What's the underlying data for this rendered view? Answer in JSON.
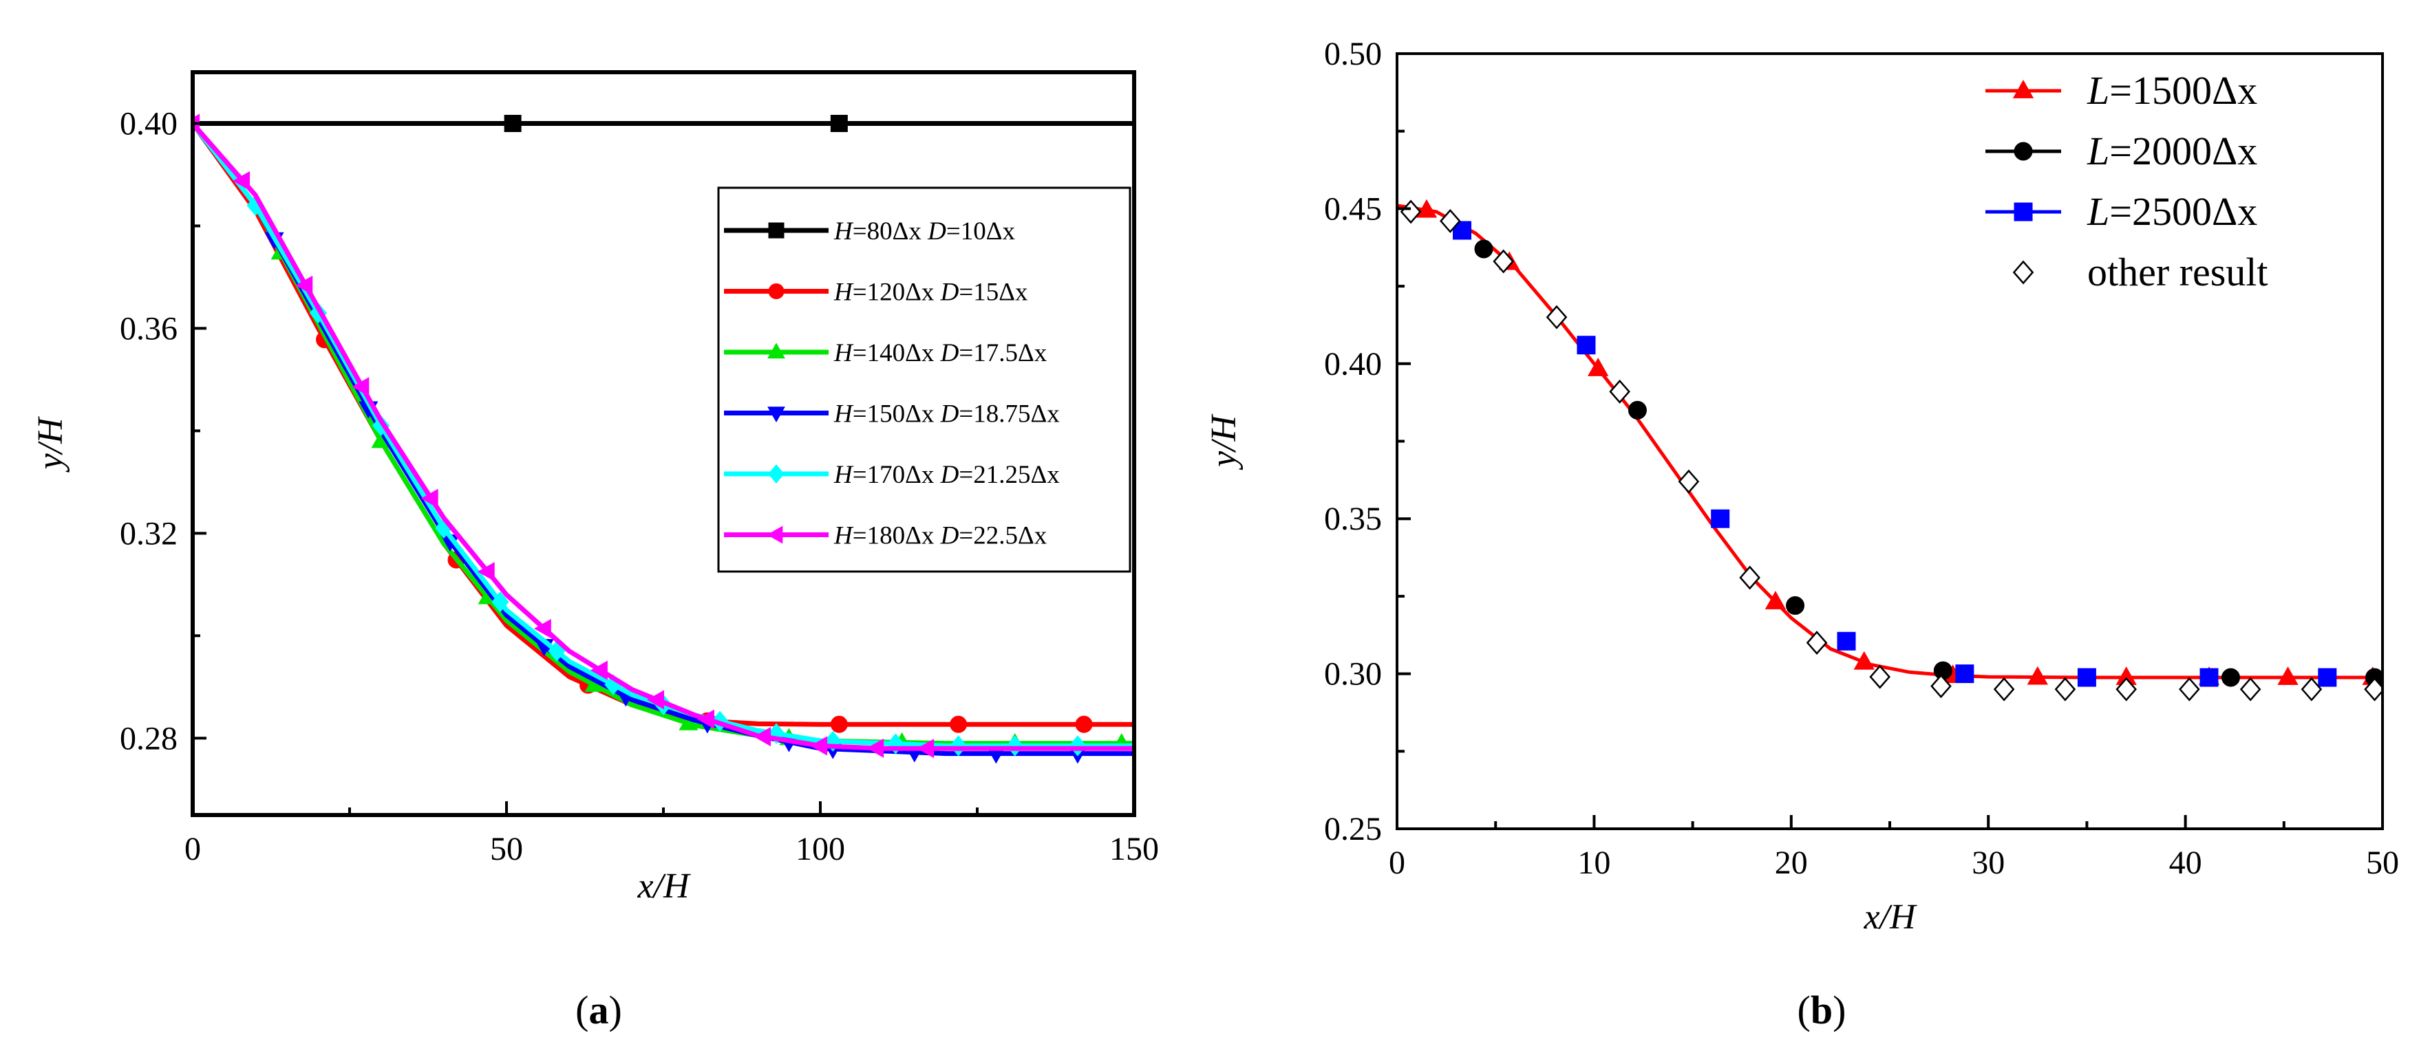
{
  "caption_a": {
    "open": "(",
    "letter": "a",
    "close": ")"
  },
  "caption_b": {
    "open": "(",
    "letter": "b",
    "close": ")"
  },
  "chart_data": [
    {
      "type": "line",
      "panel": "a",
      "xlabel": "x/H",
      "ylabel": "y/H",
      "xlim": [
        0,
        150
      ],
      "ylim": [
        0.265,
        0.41
      ],
      "xticks": [
        "0",
        "50",
        "100",
        "150"
      ],
      "yticks": [
        "0.28",
        "0.32",
        "0.36",
        "0.40"
      ],
      "ytick_values": [
        0.28,
        0.32,
        0.36,
        0.4
      ],
      "xtick_values": [
        0,
        50,
        100,
        150
      ],
      "legend_position": "right",
      "series": [
        {
          "name": "H=80Δx D=10Δx",
          "label_parts": [
            [
              "H",
              "i"
            ],
            [
              "=80Δx ",
              ""
            ],
            [
              "D",
              "i"
            ],
            [
              "=10Δx",
              ""
            ]
          ],
          "color": "#000000",
          "marker": "square",
          "x": [
            0,
            25,
            50,
            75,
            100,
            125,
            150
          ],
          "y": [
            0.4,
            0.4,
            0.4,
            0.4,
            0.4,
            0.4,
            0.4
          ],
          "markers_x": [
            51,
            103
          ]
        },
        {
          "name": "H=120Δx D=15Δx",
          "label_parts": [
            [
              "H",
              "i"
            ],
            [
              "=120Δx ",
              ""
            ],
            [
              "D",
              "i"
            ],
            [
              "=15Δx",
              ""
            ]
          ],
          "color": "#ff0000",
          "marker": "circle",
          "x": [
            0,
            10,
            20,
            30,
            40,
            50,
            60,
            70,
            80,
            90,
            100,
            120,
            150
          ],
          "y": [
            0.4,
            0.383,
            0.36,
            0.338,
            0.318,
            0.302,
            0.292,
            0.2865,
            0.2835,
            0.2828,
            0.2827,
            0.2827,
            0.2827
          ],
          "markers_x": [
            21,
            42,
            63,
            82,
            103,
            122,
            142
          ]
        },
        {
          "name": "H=140Δx D=17.5Δx",
          "label_parts": [
            [
              "H",
              "i"
            ],
            [
              "=140Δx ",
              ""
            ],
            [
              "D",
              "i"
            ],
            [
              "=17.5Δx",
              ""
            ]
          ],
          "color": "#00e600",
          "marker": "triangle-up",
          "x": [
            0,
            10,
            20,
            30,
            40,
            50,
            60,
            70,
            80,
            90,
            100,
            120,
            150
          ],
          "y": [
            0.4,
            0.384,
            0.361,
            0.338,
            0.318,
            0.303,
            0.293,
            0.2865,
            0.2825,
            0.2805,
            0.2795,
            0.279,
            0.279
          ],
          "markers_x": [
            14,
            30,
            47,
            64,
            79,
            95,
            113,
            131,
            148
          ]
        },
        {
          "name": "H=150Δx D=18.75Δx",
          "label_parts": [
            [
              "H",
              "i"
            ],
            [
              "=150Δx ",
              ""
            ],
            [
              "D",
              "i"
            ],
            [
              "=18.75Δx",
              ""
            ]
          ],
          "color": "#0000ff",
          "marker": "triangle-down",
          "x": [
            0,
            10,
            20,
            30,
            40,
            50,
            60,
            70,
            80,
            90,
            100,
            120,
            150
          ],
          "y": [
            0.4,
            0.384,
            0.362,
            0.34,
            0.32,
            0.304,
            0.294,
            0.2875,
            0.2835,
            0.2805,
            0.278,
            0.277,
            0.277
          ],
          "markers_x": [
            13,
            28,
            41,
            56,
            69,
            82,
            95,
            102,
            115,
            128,
            141
          ]
        },
        {
          "name": "H=170Δx D=21.25Δx",
          "label_parts": [
            [
              "H",
              "i"
            ],
            [
              "=170Δx ",
              ""
            ],
            [
              "D",
              "i"
            ],
            [
              "=21.25Δx",
              ""
            ]
          ],
          "color": "#00ffff",
          "marker": "diamond",
          "x": [
            0,
            10,
            20,
            30,
            40,
            50,
            60,
            70,
            80,
            90,
            100,
            120,
            150
          ],
          "y": [
            0.4,
            0.384,
            0.363,
            0.341,
            0.321,
            0.305,
            0.295,
            0.2885,
            0.2845,
            0.2815,
            0.2795,
            0.2785,
            0.2785
          ],
          "markers_x": [
            10,
            20,
            30,
            40,
            49,
            58,
            67,
            75,
            84,
            93,
            102,
            112,
            122,
            131,
            141
          ]
        },
        {
          "name": "H=180Δx D=22.5Δx",
          "label_parts": [
            [
              "H",
              "i"
            ],
            [
              "=180Δx ",
              ""
            ],
            [
              "D",
              "i"
            ],
            [
              "=22.5Δx",
              ""
            ]
          ],
          "color": "#ff00ff",
          "marker": "triangle-left",
          "x": [
            0,
            10,
            20,
            30,
            40,
            50,
            60,
            70,
            80,
            90,
            100,
            110,
            120,
            150
          ],
          "y": [
            0.4,
            0.386,
            0.364,
            0.342,
            0.323,
            0.308,
            0.297,
            0.2895,
            0.2845,
            0.2805,
            0.2785,
            0.278,
            0.278,
            0.278
          ],
          "markers_x": [
            0,
            8,
            18,
            27,
            38,
            47,
            56,
            65,
            74,
            82,
            91,
            100,
            109,
            117
          ]
        }
      ]
    },
    {
      "type": "line",
      "panel": "b",
      "xlabel": "x/H",
      "ylabel": "y/H",
      "xlim": [
        0,
        50
      ],
      "ylim": [
        0.25,
        0.5
      ],
      "xticks": [
        "0",
        "10",
        "20",
        "30",
        "40",
        "50"
      ],
      "yticks": [
        "0.25",
        "0.30",
        "0.35",
        "0.40",
        "0.45",
        "0.50"
      ],
      "ytick_values": [
        0.25,
        0.3,
        0.35,
        0.4,
        0.45,
        0.5
      ],
      "xtick_values": [
        0,
        10,
        20,
        30,
        40,
        50
      ],
      "legend_position": "top-right",
      "series": [
        {
          "name": "L=1500Δx",
          "label_parts": [
            [
              "L",
              "i"
            ],
            [
              "=1500Δx",
              ""
            ]
          ],
          "color": "#ff0000",
          "marker": "triangle-up",
          "x": [
            0,
            2,
            4,
            6,
            8,
            10,
            12,
            14,
            16,
            18,
            20,
            22,
            24,
            26,
            28,
            30,
            35,
            40,
            45,
            50
          ],
          "y": [
            0.451,
            0.449,
            0.442,
            0.431,
            0.416,
            0.4,
            0.384,
            0.366,
            0.348,
            0.331,
            0.318,
            0.308,
            0.303,
            0.3005,
            0.2995,
            0.299,
            0.2988,
            0.2988,
            0.2988,
            0.2988
          ],
          "markers_x": [
            1.5,
            5.7,
            10.2,
            19.2,
            23.7,
            28.2,
            32.5,
            37,
            41.2,
            45.2,
            49.5
          ]
        },
        {
          "name": "L=2000Δx",
          "label_parts": [
            [
              "L",
              "i"
            ],
            [
              "=2000Δx",
              ""
            ]
          ],
          "color": "#000000",
          "marker": "circle",
          "line": false,
          "x": [
            4.4,
            12.2,
            20.2,
            27.7,
            42.3,
            49.6
          ],
          "y": [
            0.437,
            0.385,
            0.322,
            0.301,
            0.2988,
            0.2988
          ],
          "markers_x": [
            4.4,
            12.2,
            20.2,
            27.7,
            42.3,
            49.6
          ]
        },
        {
          "name": "L=2500Δx",
          "label_parts": [
            [
              "L",
              "i"
            ],
            [
              "=2500Δx",
              ""
            ]
          ],
          "color": "#0000ff",
          "marker": "square",
          "line": false,
          "x": [
            3.3,
            9.6,
            16.4,
            22.8,
            28.8,
            35,
            41.2,
            47.2
          ],
          "y": [
            0.443,
            0.406,
            0.35,
            0.3105,
            0.3,
            0.2988,
            0.2988,
            0.2988
          ],
          "markers_x": [
            3.3,
            9.6,
            16.4,
            22.8,
            28.8,
            35,
            41.2,
            47.2
          ]
        },
        {
          "name": "other result",
          "label_parts": [
            [
              "other result",
              ""
            ]
          ],
          "color": "#000000",
          "marker": "open-diamond",
          "line": false,
          "x": [
            0.7,
            2.7,
            5.4,
            8.1,
            11.3,
            14.8,
            17.9,
            21.3,
            24.5,
            27.6,
            30.8,
            33.9,
            37,
            40.2,
            43.3,
            46.4,
            49.6
          ],
          "y": [
            0.449,
            0.446,
            0.433,
            0.415,
            0.391,
            0.362,
            0.331,
            0.31,
            0.299,
            0.296,
            0.295,
            0.295,
            0.295,
            0.295,
            0.295,
            0.295,
            0.295
          ],
          "markers_x": [
            0.7,
            2.7,
            5.4,
            8.1,
            11.3,
            14.8,
            17.9,
            21.3,
            24.5,
            27.6,
            30.8,
            33.9,
            37,
            40.2,
            43.3,
            46.4,
            49.6
          ]
        }
      ]
    }
  ]
}
